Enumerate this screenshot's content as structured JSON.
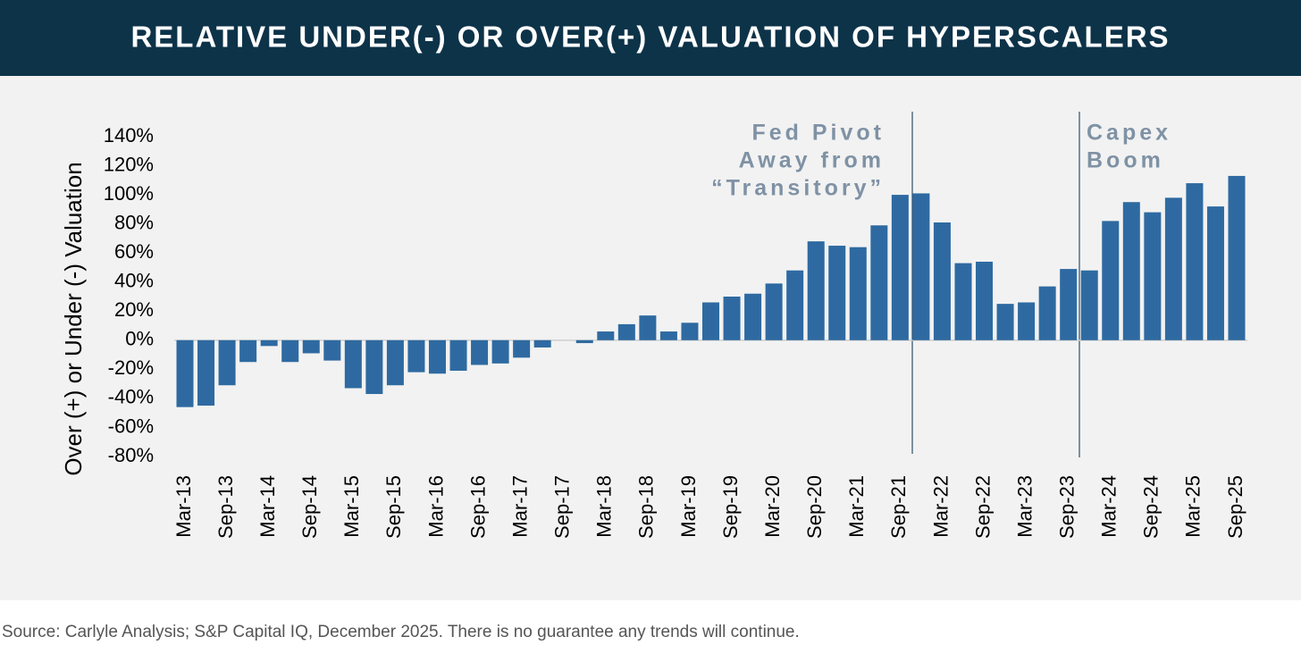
{
  "chart_data": {
    "type": "bar",
    "title": "RELATIVE UNDER(-) OR OVER(+) VALUATION OF HYPERSCALERS",
    "y_label": "Over (+) or Under (-) Valuation",
    "source": "Source: Carlyle Analysis; S&P Capital IQ, December 2025. There is no guarantee any trends will continue.",
    "annotations": [
      [
        "Fed Pivot",
        "Away from",
        "“Transitory”"
      ],
      [
        "Capex",
        "Boom"
      ]
    ],
    "categories": [
      "Mar-13",
      null,
      "Sep-13",
      null,
      "Mar-14",
      null,
      "Sep-14",
      null,
      "Mar-15",
      null,
      "Sep-15",
      null,
      "Mar-16",
      null,
      "Sep-16",
      null,
      "Mar-17",
      null,
      "Sep-17",
      null,
      "Mar-18",
      null,
      "Sep-18",
      null,
      "Mar-19",
      null,
      "Sep-19",
      null,
      "Mar-20",
      null,
      "Sep-20",
      null,
      "Mar-21",
      null,
      "Sep-21",
      null,
      "Mar-22",
      null,
      "Sep-22",
      null,
      "Mar-23",
      null,
      "Sep-23",
      null,
      "Mar-24",
      null,
      "Sep-24",
      null,
      "Mar-25",
      null,
      "Sep-25"
    ],
    "values": [
      -46,
      -45,
      -31,
      -15,
      -4,
      -15,
      -9,
      -14,
      -33,
      -37,
      -31,
      -22,
      -23,
      -21,
      -17,
      -16,
      -12,
      -5,
      0,
      -2,
      6,
      11,
      17,
      6,
      12,
      26,
      30,
      32,
      39,
      48,
      68,
      65,
      64,
      79,
      100,
      101,
      81,
      53,
      54,
      25,
      26,
      37,
      49,
      48,
      82,
      95,
      88,
      98,
      108,
      92,
      113
    ],
    "color": "#2e6aa1",
    "ylim": [
      -80,
      140
    ],
    "yticks": [
      {
        "value": -80,
        "label": "-80%"
      },
      {
        "value": -60,
        "label": "-60%"
      },
      {
        "value": -40,
        "label": "-40%"
      },
      {
        "value": -20,
        "label": "-20%"
      },
      {
        "value": 0,
        "label": "0%"
      },
      {
        "value": 20,
        "label": "20%"
      },
      {
        "value": 40,
        "label": "40%"
      },
      {
        "value": 60,
        "label": "60%"
      },
      {
        "value": 80,
        "label": "80%"
      },
      {
        "value": 100,
        "label": "100%"
      },
      {
        "value": 120,
        "label": "120%"
      },
      {
        "value": 140,
        "label": "140%"
      }
    ],
    "grid": false
  }
}
